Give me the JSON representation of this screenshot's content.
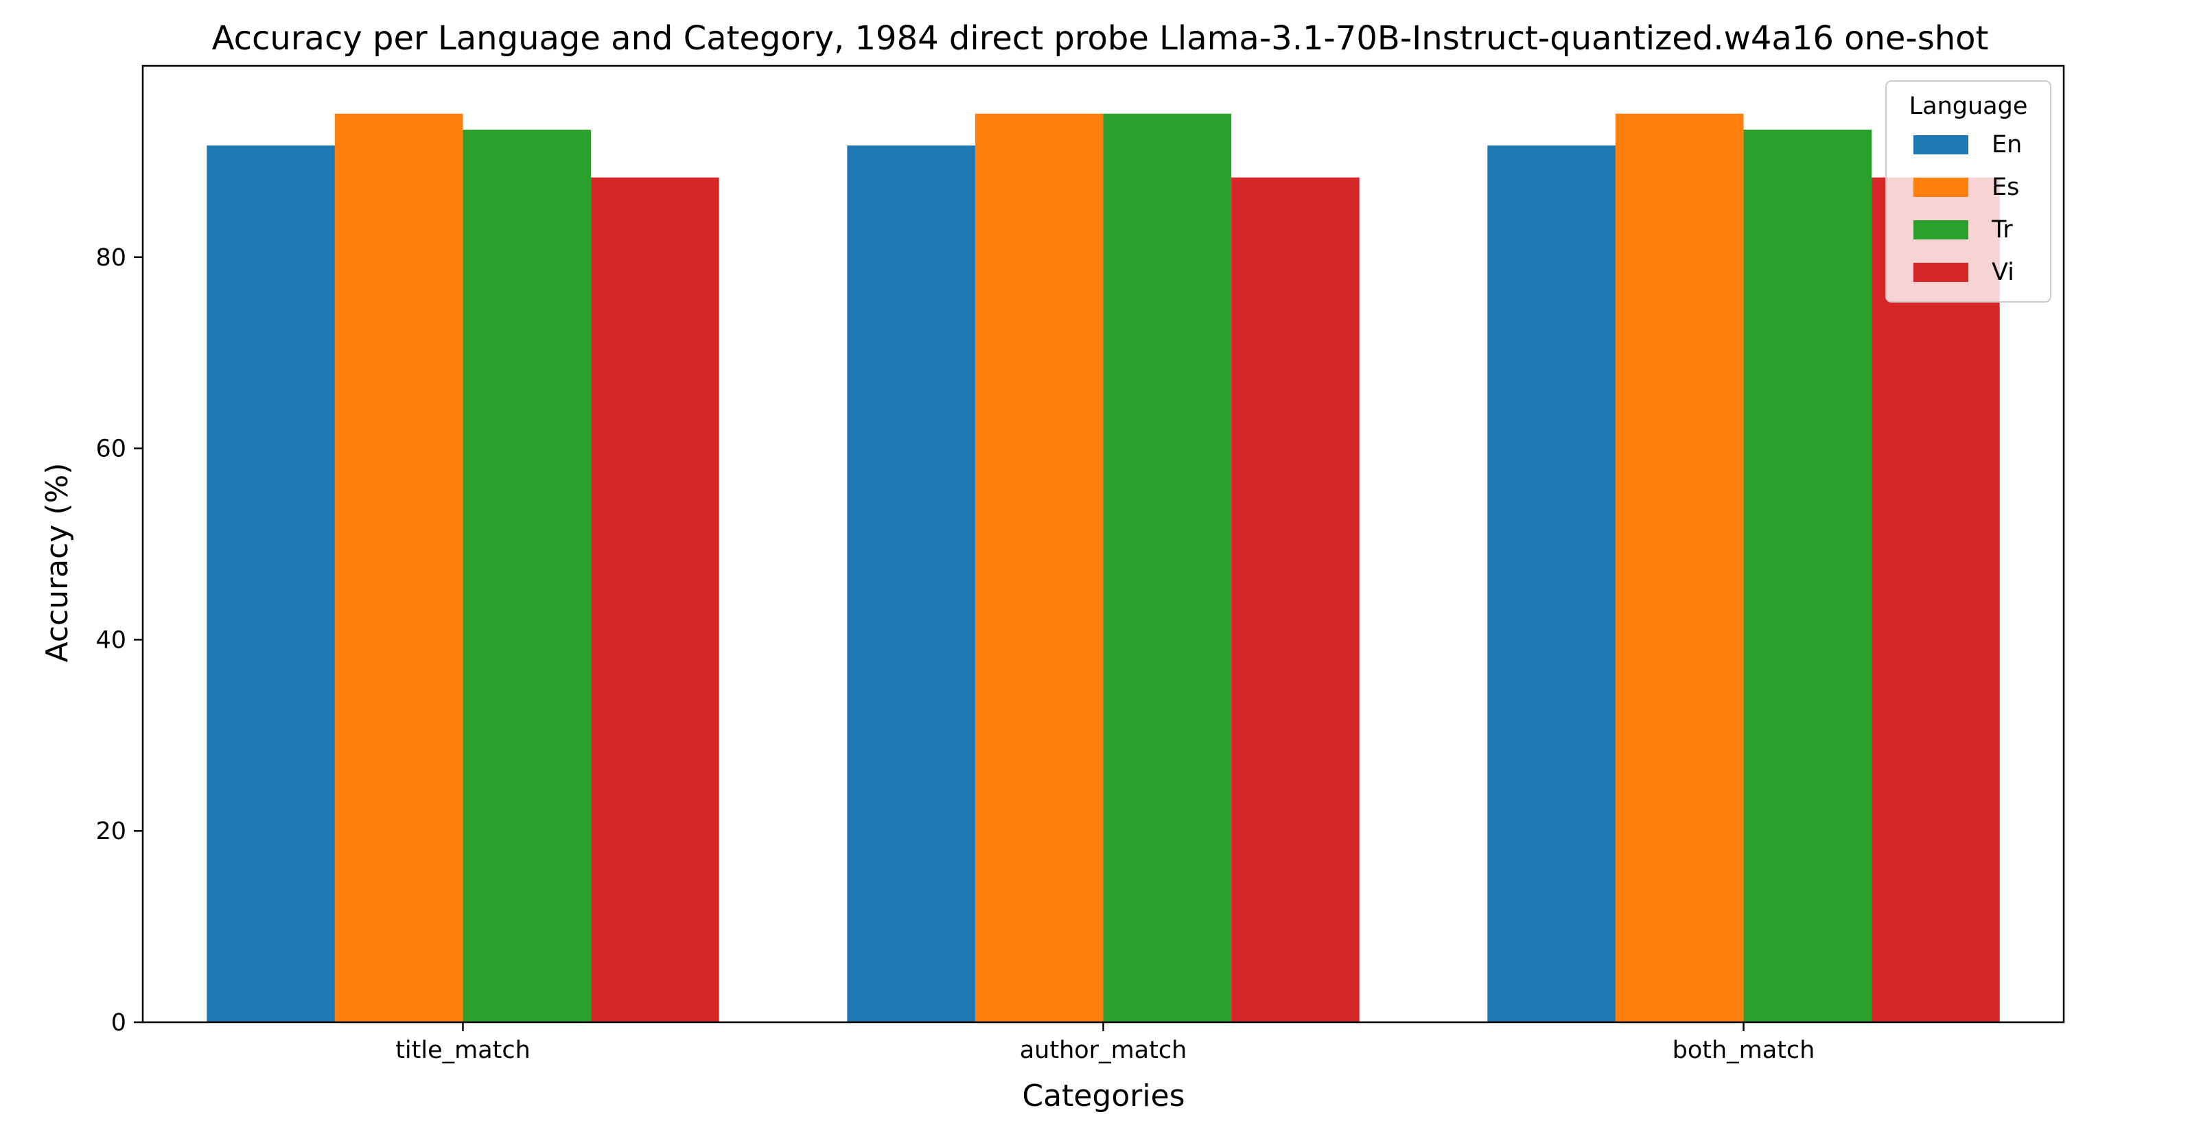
{
  "chart_data": {
    "type": "bar",
    "title": "Accuracy per Language and Category, 1984 direct probe Llama-3.1-70B-Instruct-quantized.w4a16 one-shot",
    "xlabel": "Categories",
    "ylabel": "Accuracy (%)",
    "ylim": [
      0,
      100
    ],
    "yticks": [
      0,
      20,
      40,
      60,
      80
    ],
    "categories": [
      "title_match",
      "author_match",
      "both_match"
    ],
    "series": [
      {
        "name": "En",
        "color": "#1f77b4",
        "values": [
          91.67,
          91.67,
          91.67
        ]
      },
      {
        "name": "Es",
        "color": "#ff7f0e",
        "values": [
          95.0,
          95.0,
          95.0
        ]
      },
      {
        "name": "Tr",
        "color": "#2ca02c",
        "values": [
          93.33,
          95.0,
          93.33
        ]
      },
      {
        "name": "Vi",
        "color": "#d62728",
        "values": [
          88.33,
          88.33,
          88.33
        ]
      }
    ],
    "legend": {
      "title": "Language",
      "placement": "top-right"
    },
    "grid": false
  }
}
